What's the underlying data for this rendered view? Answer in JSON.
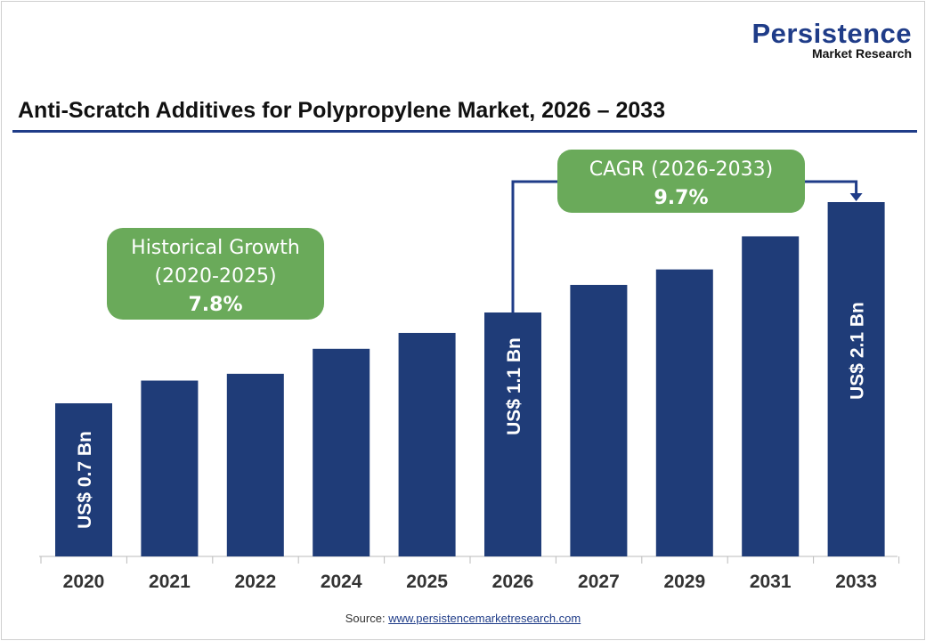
{
  "logo": {
    "main": "Persistence",
    "sub": "Market Research"
  },
  "title": "Anti-Scratch Additives for Polypropylene Market, 2026 – 2033",
  "source": {
    "label": "Source:",
    "link": "www.persistencemarketresearch.com"
  },
  "colors": {
    "bar": "#1f3c78",
    "callout": "#6aaa5a",
    "accent": "#1f3c88"
  },
  "chart_data": {
    "type": "bar",
    "title": "Anti-Scratch Additives for Polypropylene Market, 2026 – 2033",
    "categories": [
      "2020",
      "2021",
      "2022",
      "2024",
      "2025",
      "2026",
      "2027",
      "2029",
      "2031",
      "2033"
    ],
    "values": [
      0.7,
      0.8,
      0.83,
      0.94,
      1.01,
      1.1,
      1.35,
      1.49,
      1.79,
      2.1
    ],
    "unit": "US$ Bn",
    "data_labels": {
      "2020": "US$ 0.7 Bn",
      "2026": "US$ 1.1 Bn",
      "2033": "US$ 2.1 Bn"
    },
    "grid": false,
    "annotations": {
      "historical": {
        "line1": "Historical Growth",
        "line2": "(2020-2025)",
        "value": "7.8%"
      },
      "cagr": {
        "line1": "CAGR (2026-2033)",
        "value": "9.7%"
      }
    }
  }
}
